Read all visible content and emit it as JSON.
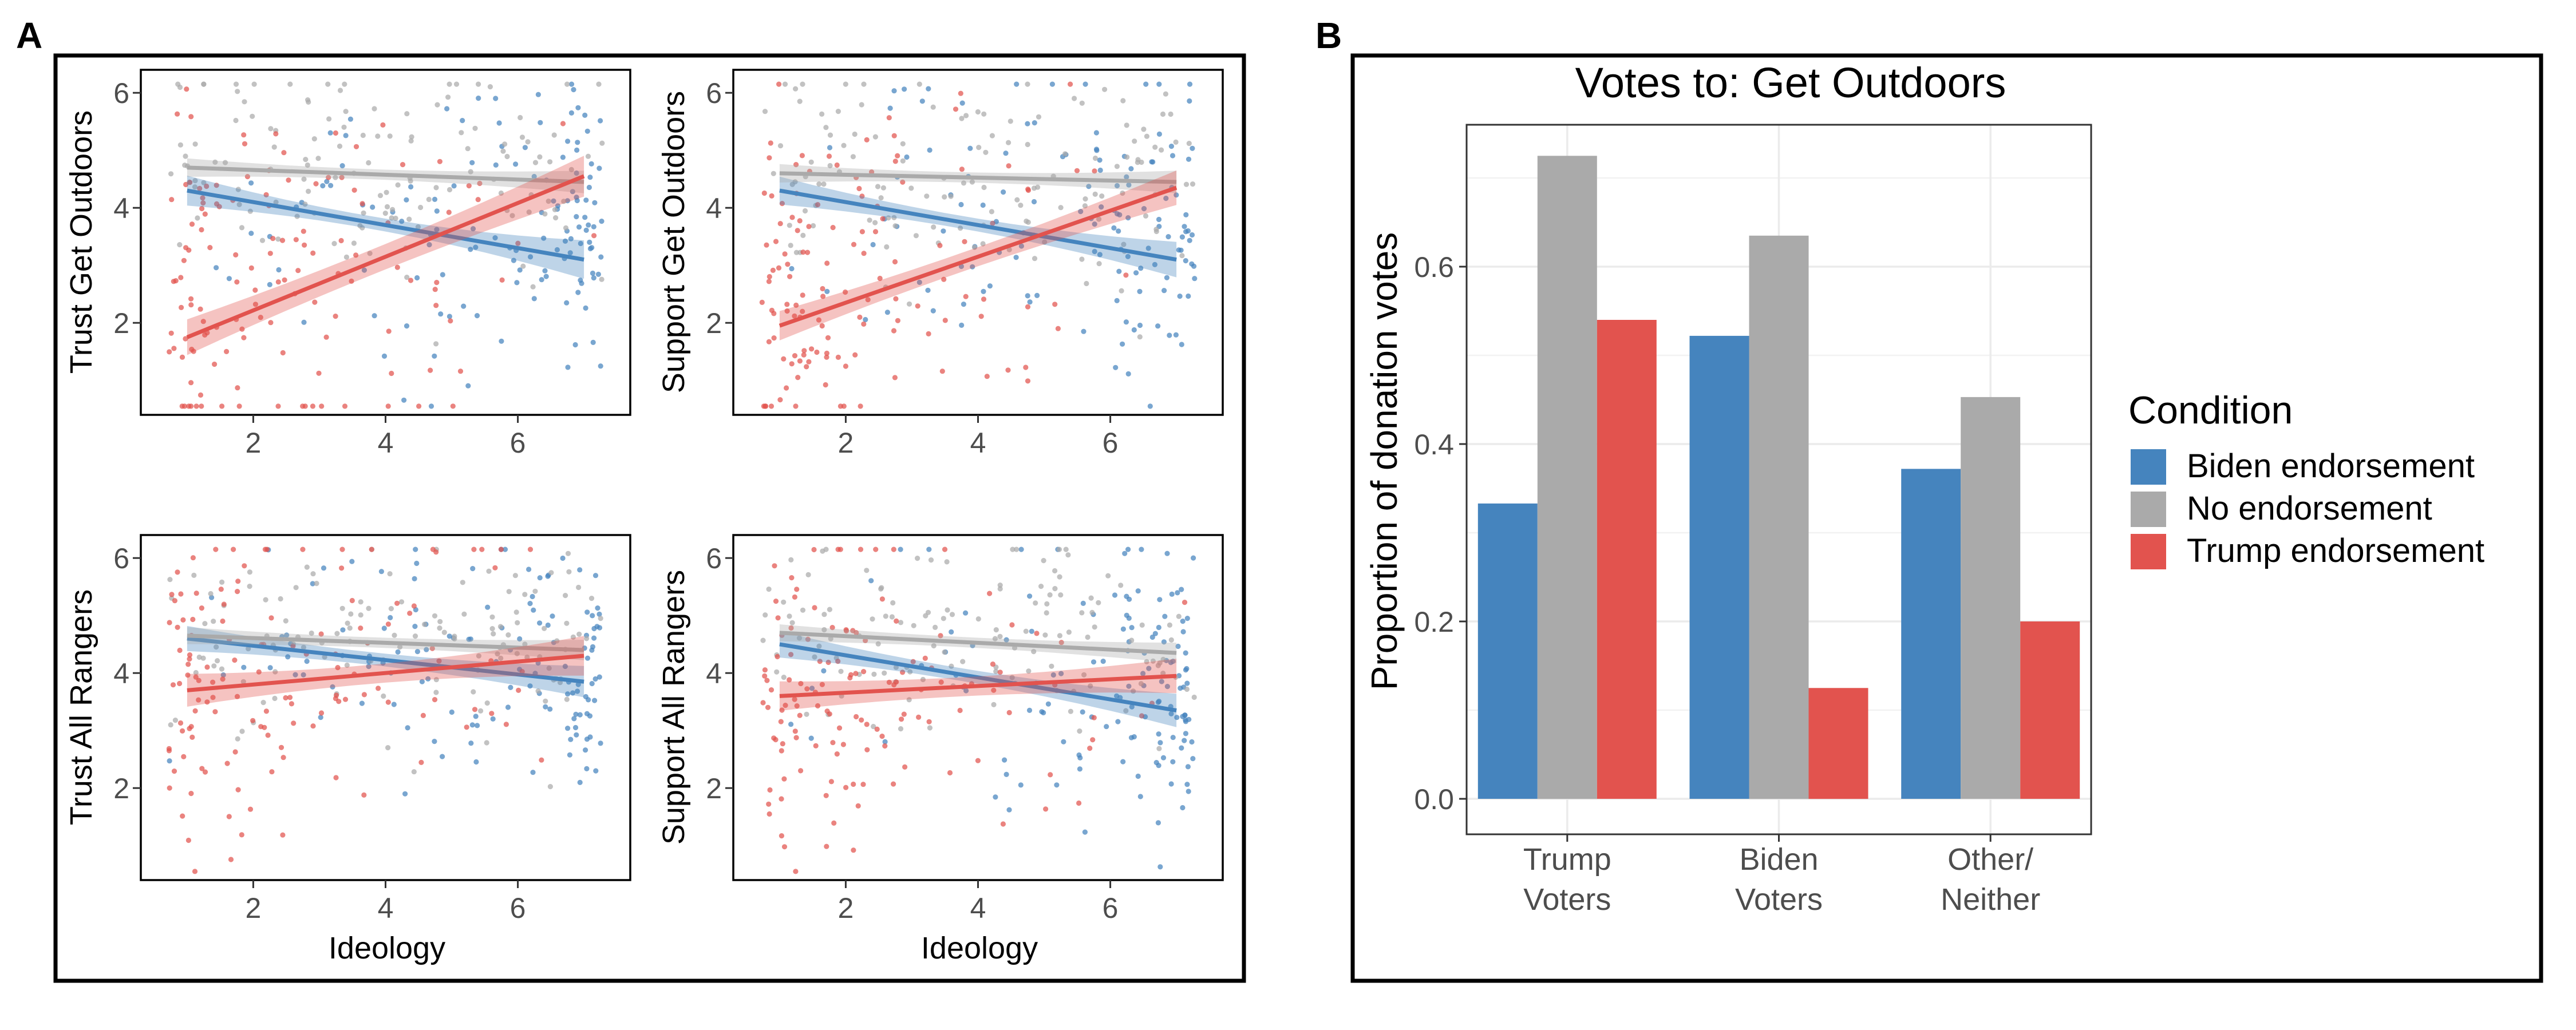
{
  "panel_labels": {
    "a": "A",
    "b": "B"
  },
  "colors": {
    "biden": "#4584BE",
    "none": "#AAAAAA",
    "trump": "#E2534E",
    "axis_text": "#4D4D4D",
    "grid": "#EBEBEB",
    "frame": "#000000"
  },
  "chart_data": [
    {
      "type": "scatter",
      "panel": "A",
      "ylabel": "Trust Get Outdoors",
      "xlabel": "",
      "xlim": [
        0.3,
        7.7
      ],
      "ylim": [
        0.4,
        6.4
      ],
      "x_ticks": [
        2,
        4,
        6
      ],
      "y_ticks": [
        2,
        4,
        6
      ],
      "grid": false,
      "series": [
        {
          "name": "Biden endorsement",
          "fit": [
            [
              1,
              4.3
            ],
            [
              7,
              3.1
            ]
          ],
          "ci": [
            0.1,
            0.35
          ],
          "cloud": {
            "center": 4.0,
            "spread": 1.3
          }
        },
        {
          "name": "No endorsement",
          "fit": [
            [
              1,
              4.7
            ],
            [
              7,
              4.45
            ]
          ],
          "ci": [
            0.08,
            0.2
          ],
          "cloud": {
            "center": 4.7,
            "spread": 1.0
          }
        },
        {
          "name": "Trump endorsement",
          "fit": [
            [
              1,
              1.75
            ],
            [
              7,
              4.55
            ]
          ],
          "ci": [
            0.2,
            0.35
          ],
          "cloud": {
            "center": 2.8,
            "spread": 1.7
          }
        }
      ]
    },
    {
      "type": "scatter",
      "panel": "A",
      "ylabel": "Support Get Outdoors",
      "xlabel": "",
      "xlim": [
        0.3,
        7.7
      ],
      "ylim": [
        0.4,
        6.4
      ],
      "x_ticks": [
        2,
        4,
        6
      ],
      "y_ticks": [
        2,
        4,
        6
      ],
      "grid": false,
      "series": [
        {
          "name": "Biden endorsement",
          "fit": [
            [
              1,
              4.3
            ],
            [
              7,
              3.1
            ]
          ],
          "ci": [
            0.1,
            0.32
          ],
          "cloud": {
            "center": 4.1,
            "spread": 1.3
          }
        },
        {
          "name": "No endorsement",
          "fit": [
            [
              1,
              4.6
            ],
            [
              7,
              4.45
            ]
          ],
          "ci": [
            0.08,
            0.2
          ],
          "cloud": {
            "center": 4.6,
            "spread": 1.0
          }
        },
        {
          "name": "Trump endorsement",
          "fit": [
            [
              1,
              1.95
            ],
            [
              7,
              4.35
            ]
          ],
          "ci": [
            0.15,
            0.3
          ],
          "cloud": {
            "center": 3.0,
            "spread": 1.6
          }
        }
      ]
    },
    {
      "type": "scatter",
      "panel": "A",
      "ylabel": "Trust All Rangers",
      "xlabel": "Ideology",
      "xlim": [
        0.3,
        7.7
      ],
      "ylim": [
        0.4,
        6.4
      ],
      "x_ticks": [
        2,
        4,
        6
      ],
      "y_ticks": [
        2,
        4,
        6
      ],
      "grid": false,
      "series": [
        {
          "name": "Biden endorsement",
          "fit": [
            [
              1,
              4.6
            ],
            [
              7,
              3.85
            ]
          ],
          "ci": [
            0.1,
            0.28
          ],
          "cloud": {
            "center": 4.3,
            "spread": 1.1
          }
        },
        {
          "name": "No endorsement",
          "fit": [
            [
              1,
              4.65
            ],
            [
              7,
              4.4
            ]
          ],
          "ci": [
            0.08,
            0.18
          ],
          "cloud": {
            "center": 4.6,
            "spread": 0.9
          }
        },
        {
          "name": "Trump endorsement",
          "fit": [
            [
              1,
              3.7
            ],
            [
              7,
              4.3
            ]
          ],
          "ci": [
            0.15,
            0.35
          ],
          "cloud": {
            "center": 3.8,
            "spread": 1.4
          }
        }
      ]
    },
    {
      "type": "scatter",
      "panel": "A",
      "ylabel": "Support All Rangers",
      "xlabel": "Ideology",
      "xlim": [
        0.3,
        7.7
      ],
      "ylim": [
        0.4,
        6.4
      ],
      "x_ticks": [
        2,
        4,
        6
      ],
      "y_ticks": [
        2,
        4,
        6
      ],
      "grid": false,
      "series": [
        {
          "name": "Biden endorsement",
          "fit": [
            [
              1,
              4.5
            ],
            [
              7,
              3.35
            ]
          ],
          "ci": [
            0.1,
            0.3
          ],
          "cloud": {
            "center": 4.1,
            "spread": 1.2
          }
        },
        {
          "name": "No endorsement",
          "fit": [
            [
              1,
              4.7
            ],
            [
              7,
              4.35
            ]
          ],
          "ci": [
            0.08,
            0.18
          ],
          "cloud": {
            "center": 4.5,
            "spread": 0.9
          }
        },
        {
          "name": "Trump endorsement",
          "fit": [
            [
              1,
              3.6
            ],
            [
              7,
              3.95
            ]
          ],
          "ci": [
            0.15,
            0.3
          ],
          "cloud": {
            "center": 3.6,
            "spread": 1.4
          }
        }
      ]
    },
    {
      "type": "bar",
      "panel": "B",
      "title": "Votes to: Get Outdoors",
      "xlabel": "",
      "ylabel": "Proportion of donation votes",
      "ylim": [
        -0.04,
        0.76
      ],
      "y_ticks": [
        "0.0",
        "0.2",
        "0.4",
        "0.6"
      ],
      "categories": [
        [
          "Trump",
          "Voters"
        ],
        [
          "Biden",
          "Voters"
        ],
        [
          "Other/",
          "Neither"
        ]
      ],
      "series": [
        {
          "name": "Biden endorsement",
          "values": [
            0.333,
            0.522,
            0.372
          ]
        },
        {
          "name": "No endorsement",
          "values": [
            0.725,
            0.635,
            0.453
          ]
        },
        {
          "name": "Trump endorsement",
          "values": [
            0.54,
            0.125,
            0.2
          ]
        }
      ],
      "legend": {
        "title": "Condition",
        "position": "right"
      },
      "grid": true
    }
  ]
}
